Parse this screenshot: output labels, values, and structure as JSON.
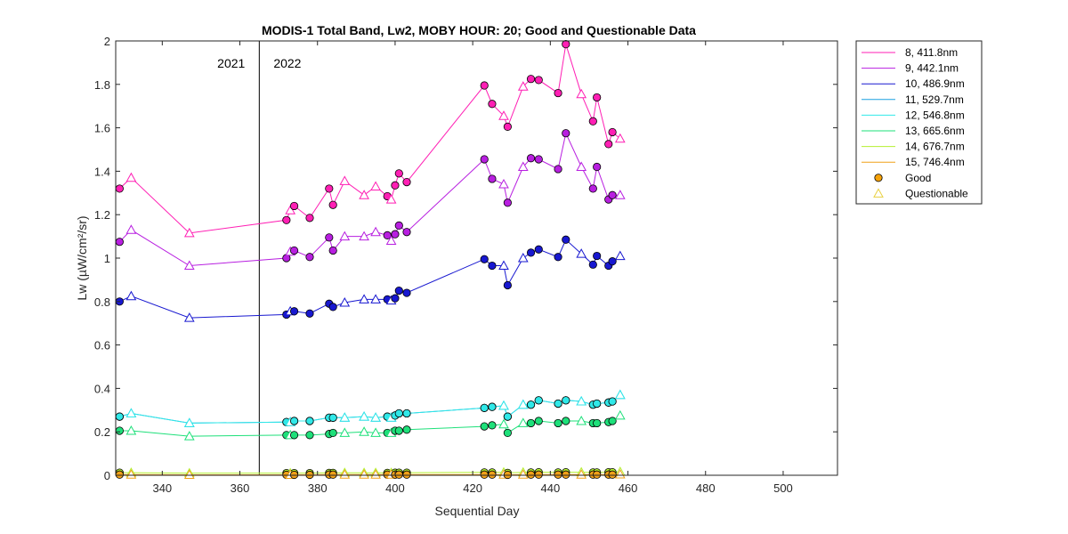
{
  "chart_data": {
    "type": "line",
    "title": "MODIS-1 Total Band,  Lw2, MOBY HOUR: 20;  Good and Questionable Data",
    "xlabel": "Sequential Day",
    "ylabel": "Lw (µW/cm²/sr)",
    "xlim": [
      328,
      514
    ],
    "ylim": [
      0,
      2
    ],
    "xticks": [
      340,
      360,
      380,
      400,
      420,
      440,
      460,
      480,
      500
    ],
    "xtick_labels": [
      "340",
      "360",
      "380",
      "400",
      "420",
      "440",
      "460",
      "480",
      "500"
    ],
    "yticks": [
      0,
      0.2,
      0.4,
      0.6,
      0.8,
      1,
      1.2,
      1.4,
      1.6,
      1.8,
      2
    ],
    "ytick_labels": [
      "0",
      "0.2",
      "0.4",
      "0.6",
      "0.8",
      "1",
      "1.2",
      "1.4",
      "1.6",
      "1.8",
      "2"
    ],
    "grid": false,
    "legend_position": "outside-top-right",
    "year_divider": {
      "x": 365,
      "left_label": "2021",
      "right_label": "2022"
    },
    "x": [
      329,
      332,
      347,
      372,
      373,
      374,
      378,
      383,
      384,
      387,
      392,
      395,
      398,
      399,
      400,
      401,
      403,
      423,
      425,
      428,
      429,
      433,
      435,
      437,
      442,
      444,
      448,
      451,
      452,
      455,
      456,
      458
    ],
    "quality": [
      "G",
      "Q",
      "Q",
      "G",
      "Q",
      "G",
      "G",
      "G",
      "G",
      "Q",
      "Q",
      "Q",
      "G",
      "Q",
      "G",
      "G",
      "G",
      "G",
      "G",
      "Q",
      "G",
      "Q",
      "G",
      "G",
      "G",
      "G",
      "Q",
      "G",
      "G",
      "G",
      "G",
      "Q"
    ],
    "series": [
      {
        "name": "8, 411.8nm",
        "color": "#ff1fb4",
        "values": [
          1.32,
          1.37,
          1.115,
          1.175,
          1.22,
          1.24,
          1.185,
          1.32,
          1.245,
          1.355,
          1.29,
          1.33,
          1.285,
          1.27,
          1.335,
          1.39,
          1.35,
          1.795,
          1.71,
          1.655,
          1.605,
          1.79,
          1.825,
          1.82,
          1.76,
          1.985,
          1.755,
          1.63,
          1.74,
          1.525,
          1.58,
          1.55
        ]
      },
      {
        "name": "9, 442.1nm",
        "color": "#b81fe0",
        "values": [
          1.075,
          1.13,
          0.965,
          1.0,
          1.03,
          1.035,
          1.005,
          1.095,
          1.035,
          1.1,
          1.1,
          1.12,
          1.105,
          1.08,
          1.11,
          1.15,
          1.12,
          1.455,
          1.365,
          1.34,
          1.255,
          1.42,
          1.46,
          1.455,
          1.41,
          1.575,
          1.42,
          1.32,
          1.42,
          1.27,
          1.29,
          1.29
        ]
      },
      {
        "name": "10, 486.9nm",
        "color": "#1818d0",
        "values": [
          0.8,
          0.825,
          0.725,
          0.74,
          0.755,
          0.755,
          0.745,
          0.79,
          0.775,
          0.795,
          0.81,
          0.81,
          0.81,
          0.805,
          0.815,
          0.85,
          0.84,
          0.995,
          0.965,
          0.965,
          0.875,
          1.0,
          1.025,
          1.04,
          1.005,
          1.085,
          1.02,
          0.97,
          1.01,
          0.965,
          0.985,
          1.01
        ]
      },
      {
        "name": "11, 529.7nm",
        "color": "#1aa0e0",
        "values": [
          0.27,
          0.285,
          0.24,
          0.245,
          0.245,
          0.25,
          0.25,
          0.265,
          0.265,
          0.265,
          0.27,
          0.265,
          0.27,
          0.265,
          0.275,
          0.285,
          0.285,
          0.31,
          0.315,
          0.32,
          0.27,
          0.325,
          0.325,
          0.345,
          0.33,
          0.345,
          0.34,
          0.325,
          0.33,
          0.335,
          0.34,
          0.37
        ]
      },
      {
        "name": "12, 546.8nm",
        "color": "#30e8e8",
        "values": [
          0.27,
          0.285,
          0.24,
          0.245,
          0.245,
          0.25,
          0.25,
          0.265,
          0.265,
          0.265,
          0.27,
          0.265,
          0.27,
          0.265,
          0.275,
          0.285,
          0.285,
          0.31,
          0.315,
          0.32,
          0.27,
          0.325,
          0.325,
          0.345,
          0.33,
          0.345,
          0.34,
          0.325,
          0.33,
          0.335,
          0.34,
          0.37
        ]
      },
      {
        "name": "13, 665.6nm",
        "color": "#1ee07a",
        "values": [
          0.205,
          0.205,
          0.18,
          0.185,
          0.185,
          0.185,
          0.185,
          0.19,
          0.195,
          0.195,
          0.2,
          0.195,
          0.195,
          0.195,
          0.205,
          0.205,
          0.21,
          0.225,
          0.23,
          0.235,
          0.195,
          0.24,
          0.24,
          0.25,
          0.24,
          0.25,
          0.25,
          0.24,
          0.24,
          0.245,
          0.25,
          0.275
        ]
      },
      {
        "name": "14, 676.7nm",
        "color": "#b4f030",
        "values": [
          0.012,
          0.012,
          0.01,
          0.01,
          0.01,
          0.01,
          0.01,
          0.011,
          0.011,
          0.011,
          0.011,
          0.011,
          0.011,
          0.011,
          0.012,
          0.012,
          0.012,
          0.013,
          0.013,
          0.013,
          0.011,
          0.013,
          0.013,
          0.014,
          0.013,
          0.014,
          0.014,
          0.013,
          0.013,
          0.014,
          0.014,
          0.016
        ]
      },
      {
        "name": "15, 746.4nm",
        "color": "#f0a018",
        "values": [
          0.003,
          0.003,
          0.002,
          0.002,
          0.002,
          0.002,
          0.002,
          0.003,
          0.003,
          0.003,
          0.003,
          0.003,
          0.003,
          0.003,
          0.003,
          0.003,
          0.003,
          0.003,
          0.003,
          0.003,
          0.002,
          0.003,
          0.003,
          0.003,
          0.003,
          0.003,
          0.003,
          0.003,
          0.003,
          0.003,
          0.003,
          0.004
        ]
      }
    ],
    "marker_legend": [
      {
        "name": "Good",
        "marker": "circle",
        "color": "#f5a20a"
      },
      {
        "name": "Questionable",
        "marker": "triangle",
        "color": "#e8d040"
      }
    ]
  }
}
